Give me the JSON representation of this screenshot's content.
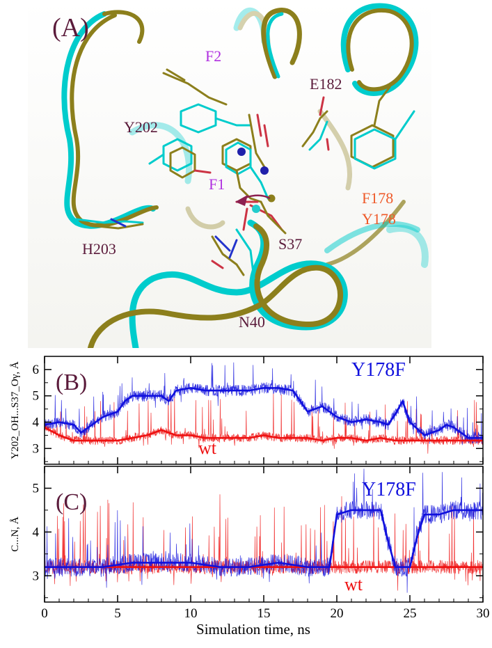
{
  "panel_a": {
    "label": "(A)",
    "residues": [
      {
        "id": "F2",
        "text": "F2",
        "color": "#b030e0"
      },
      {
        "id": "E182",
        "text": "E182",
        "color": "#5a1a3a"
      },
      {
        "id": "Y202",
        "text": "Y202",
        "color": "#5a1a3a"
      },
      {
        "id": "F1",
        "text": "F1",
        "color": "#b030e0"
      },
      {
        "id": "F178",
        "text": "F178",
        "color": "#ee5a2a"
      },
      {
        "id": "Y178",
        "text": "Y178",
        "color": "#ee5a2a"
      },
      {
        "id": "H203",
        "text": "H203",
        "color": "#5a1a3a"
      },
      {
        "id": "S37",
        "text": "S37",
        "color": "#5a1a3a"
      },
      {
        "id": "N40",
        "text": "N40",
        "color": "#5a1a3a"
      }
    ],
    "colors": {
      "cyan": "#00cccc",
      "olive": "#8c7f1c",
      "arrow": "#8c2050"
    }
  },
  "chart_data": [
    {
      "type": "line",
      "panel_label": "(B)",
      "ylabel": "Y202_OH...S37_Oγ, Å",
      "xlim": [
        0,
        30
      ],
      "ylim": [
        2.4,
        6.5
      ],
      "yticks": [
        3,
        4,
        5,
        6
      ],
      "series": [
        {
          "name": "Y178F",
          "color": "#1010dd",
          "x": [
            0,
            1,
            2,
            2.5,
            3,
            4,
            5,
            5.5,
            6,
            7,
            8,
            8.5,
            9,
            10,
            11,
            12,
            13,
            14,
            15,
            16,
            17,
            17.5,
            18,
            19,
            20,
            21,
            22,
            23,
            23.5,
            24,
            24.5,
            25,
            26,
            27,
            27.5,
            28,
            29,
            30
          ],
          "y": [
            3.9,
            4.0,
            3.9,
            3.6,
            3.8,
            4.2,
            4.4,
            4.8,
            5.0,
            5.0,
            5.0,
            4.8,
            5.2,
            5.3,
            5.2,
            5.2,
            5.2,
            5.2,
            5.3,
            5.3,
            5.2,
            4.8,
            4.4,
            4.6,
            4.2,
            4.0,
            4.1,
            4.0,
            3.9,
            4.3,
            4.8,
            4.0,
            3.5,
            3.7,
            3.9,
            3.8,
            3.4,
            3.4
          ]
        },
        {
          "name": "wt",
          "color": "#ee1111",
          "x": [
            0,
            1,
            2,
            3,
            4,
            5,
            6,
            7,
            8,
            9,
            10,
            11,
            12,
            13,
            14,
            15,
            16,
            17,
            18,
            19,
            20,
            21,
            22,
            23,
            24,
            25,
            26,
            27,
            28,
            29,
            30
          ],
          "y": [
            3.8,
            3.5,
            3.3,
            3.3,
            3.3,
            3.3,
            3.4,
            3.5,
            3.7,
            3.5,
            3.5,
            3.4,
            3.4,
            3.4,
            3.4,
            3.5,
            3.4,
            3.4,
            3.4,
            3.3,
            3.4,
            3.4,
            3.3,
            3.4,
            3.3,
            3.3,
            3.3,
            3.3,
            3.3,
            3.3,
            3.3
          ]
        }
      ],
      "labels": {
        "blue": "Y178F",
        "red": "wt"
      }
    },
    {
      "type": "line",
      "panel_label": "(C)",
      "ylabel": "C...N, Å",
      "xlim": [
        0,
        30
      ],
      "ylim": [
        2.4,
        5.5
      ],
      "yticks": [
        3,
        4,
        5
      ],
      "xticks": [
        0,
        5,
        10,
        15,
        20,
        25,
        30
      ],
      "xlabel": "Simulation time, ns",
      "series": [
        {
          "name": "Y178F",
          "color": "#1010dd",
          "x": [
            0,
            2,
            4,
            6,
            8,
            10,
            12,
            14,
            16,
            18,
            19.5,
            20,
            21,
            22,
            23,
            23.5,
            24,
            25,
            25.5,
            26,
            27,
            28,
            29,
            30
          ],
          "y": [
            3.2,
            3.2,
            3.2,
            3.3,
            3.3,
            3.3,
            3.2,
            3.2,
            3.3,
            3.2,
            3.2,
            4.4,
            4.5,
            4.5,
            4.5,
            3.8,
            3.2,
            3.2,
            3.9,
            4.4,
            4.4,
            4.5,
            4.5,
            4.5
          ]
        },
        {
          "name": "wt",
          "color": "#ee1111",
          "x": [
            0,
            3,
            6,
            9,
            12,
            15,
            18,
            21,
            24,
            27,
            30
          ],
          "y": [
            3.2,
            3.2,
            3.2,
            3.2,
            3.2,
            3.2,
            3.2,
            3.2,
            3.2,
            3.2,
            3.2
          ]
        }
      ],
      "labels": {
        "blue": "Y178F",
        "red": "wt"
      }
    }
  ]
}
